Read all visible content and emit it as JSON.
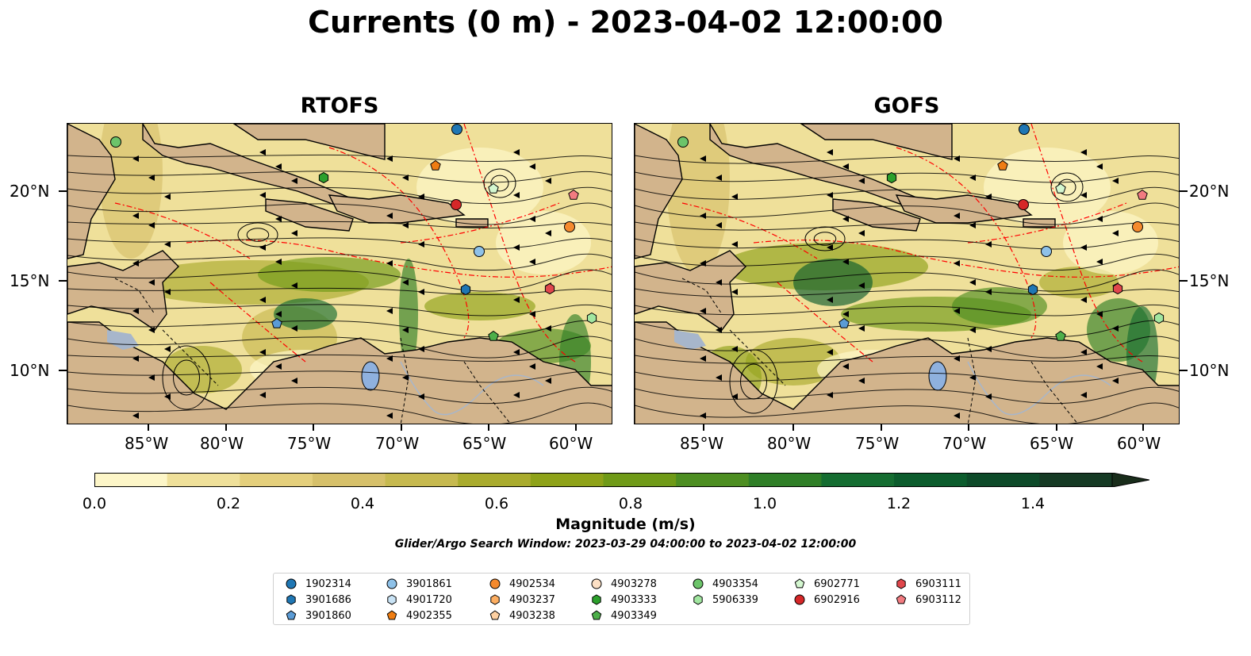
{
  "title": "Currents (0 m) - 2023-04-02 12:00:00",
  "panels": [
    {
      "title": "RTOFS"
    },
    {
      "title": "GOFS"
    }
  ],
  "lon_ticks": [
    "85°W",
    "80°W",
    "75°W",
    "70°W",
    "65°W",
    "60°W"
  ],
  "lat_ticks": [
    "20°N",
    "15°N",
    "10°N"
  ],
  "colorbar": {
    "label": "Magnitude (m/s)",
    "ticks": [
      "0.0",
      "0.2",
      "0.4",
      "0.6",
      "0.8",
      "1.0",
      "1.2",
      "1.4"
    ],
    "range": [
      0.0,
      1.5
    ],
    "extend": "max",
    "colors": [
      "#fdf6c8",
      "#efe09a",
      "#e4cf7c",
      "#d6c06a",
      "#c6b94f",
      "#a9ab2d",
      "#8ea218",
      "#6f9a17",
      "#4d8e21",
      "#2f7f27",
      "#156d31",
      "#0c5c2d",
      "#0d4a29",
      "#163a24",
      "#192d1b"
    ]
  },
  "subtitle": "Glider/Argo Search Window: 2023-03-29 04:00:00 to 2023-04-02 12:00:00",
  "legend": [
    {
      "id": "1902314",
      "marker": "circle",
      "color": "#1f77b4"
    },
    {
      "id": "3901686",
      "marker": "hexagon",
      "color": "#1f77b4"
    },
    {
      "id": "3901860",
      "marker": "pentagon",
      "color": "#5b9bd5"
    },
    {
      "id": "3901861",
      "marker": "circle",
      "color": "#8ec1e8"
    },
    {
      "id": "4901720",
      "marker": "hexagon",
      "color": "#c9e3f5"
    },
    {
      "id": "4902355",
      "marker": "pentagon",
      "color": "#ef7d12"
    },
    {
      "id": "4902534",
      "marker": "circle",
      "color": "#f58a2e"
    },
    {
      "id": "4903237",
      "marker": "hexagon",
      "color": "#fdae61"
    },
    {
      "id": "4903238",
      "marker": "pentagon",
      "color": "#fdd0a2"
    },
    {
      "id": "4903278",
      "marker": "circle",
      "color": "#fde0c5"
    },
    {
      "id": "4903333",
      "marker": "hexagon",
      "color": "#2ca02c"
    },
    {
      "id": "4903349",
      "marker": "pentagon",
      "color": "#4daf4a"
    },
    {
      "id": "4903354",
      "marker": "circle",
      "color": "#6cc46a"
    },
    {
      "id": "5906339",
      "marker": "hexagon",
      "color": "#a1e6a0"
    },
    {
      "id": "6902771",
      "marker": "pentagon",
      "color": "#d4f7d0"
    },
    {
      "id": "6902916",
      "marker": "circle",
      "color": "#d62728"
    },
    {
      "id": "6903111",
      "marker": "hexagon",
      "color": "#e0474c"
    },
    {
      "id": "6903112",
      "marker": "pentagon",
      "color": "#f27b80"
    }
  ],
  "colors": {
    "land": "#d2b48c",
    "lake": "#8fb1de",
    "eez_line": "#ff0000",
    "border_line": "#000000"
  }
}
